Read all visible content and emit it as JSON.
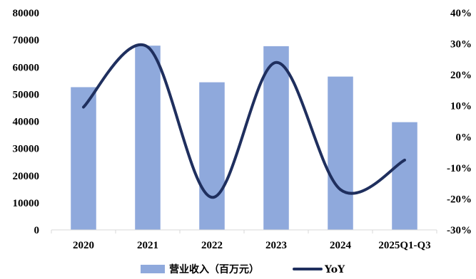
{
  "chart_data": {
    "type": "bar",
    "categories": [
      "2020",
      "2021",
      "2022",
      "2023",
      "2024",
      "2025Q1-Q3"
    ],
    "series": [
      {
        "name": "营业收入（百万元）",
        "type": "bar",
        "axis": "left",
        "color": "#8FA9DC",
        "values": [
          52600,
          67900,
          54400,
          67700,
          56500,
          39700
        ]
      },
      {
        "name": "YoY",
        "type": "line",
        "axis": "right",
        "smooth": true,
        "color": "#1F2F5E",
        "values": [
          0.096,
          0.29,
          -0.195,
          0.24,
          -0.17,
          -0.075
        ]
      }
    ],
    "ylim_left": [
      0,
      80000
    ],
    "yticks_left": [
      "0",
      "10000",
      "20000",
      "30000",
      "40000",
      "50000",
      "60000",
      "70000",
      "80000"
    ],
    "ylim_right": [
      -0.3,
      0.4
    ],
    "yticks_right": [
      "-30%",
      "-20%",
      "-10%",
      "0%",
      "10%",
      "20%",
      "30%",
      "40%"
    ],
    "grid": false,
    "legend_position": "bottom"
  }
}
